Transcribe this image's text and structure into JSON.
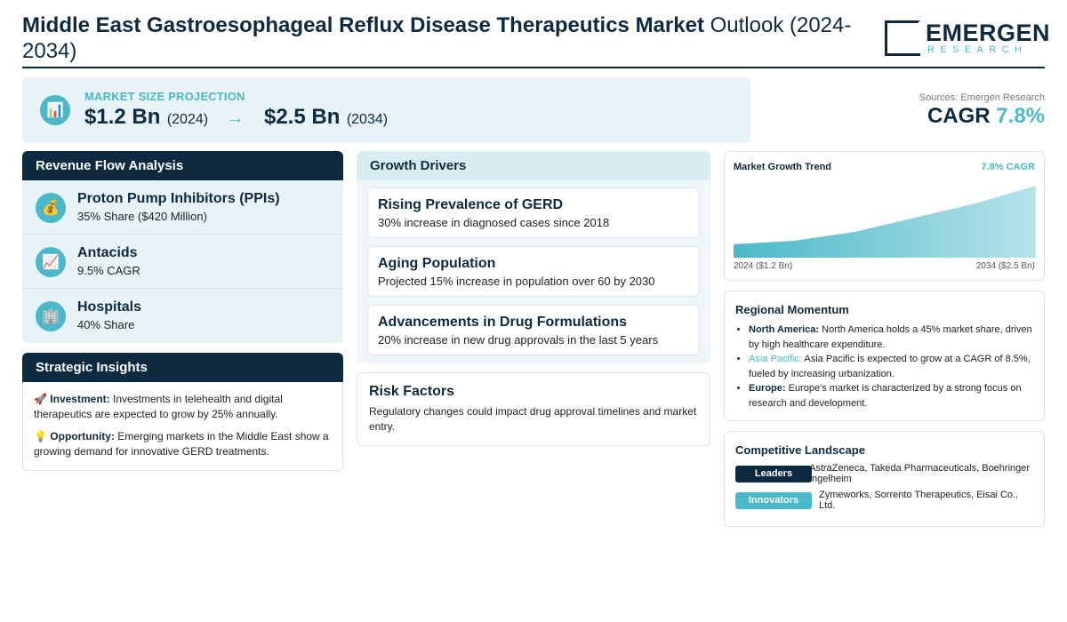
{
  "header": {
    "title_bold": "Middle East Gastroesophageal Reflux Disease Therapeutics Market",
    "title_rest": " Outlook (2024-2034)"
  },
  "logo": {
    "name": "EMERGEN",
    "sub": "RESEARCH"
  },
  "projection": {
    "label": "MARKET SIZE PROJECTION",
    "start_value": "$1.2 Bn",
    "start_year": "(2024)",
    "arrow": "→",
    "end_value": "$2.5 Bn",
    "end_year": "(2034)",
    "icon": "chart-icon"
  },
  "sources": "Sources: Emergen Research",
  "cagr": {
    "label": "CAGR",
    "value": "7.8%"
  },
  "revenue": {
    "title": "Revenue Flow Analysis",
    "items": [
      {
        "icon": "money-bag-icon",
        "glyph": "💰",
        "title": "Proton Pump Inhibitors (PPIs)",
        "sub": "35% Share ($420 Million)"
      },
      {
        "icon": "trend-up-icon",
        "glyph": "📈",
        "title": "Antacids",
        "sub": "9.5% CAGR"
      },
      {
        "icon": "hospital-icon",
        "glyph": "🏢",
        "title": "Hospitals",
        "sub": "40% Share"
      }
    ]
  },
  "strategic": {
    "title": "Strategic Insights",
    "investment_icon": "🚀",
    "investment_label": "Investment:",
    "investment_text": " Investments in telehealth and digital therapeutics are expected to grow by 25% annually.",
    "opportunity_icon": "💡",
    "opportunity_label": "Opportunity:",
    "opportunity_text": " Emerging markets in the Middle East show a growing demand for innovative GERD treatments."
  },
  "growth": {
    "title": "Growth Drivers",
    "items": [
      {
        "title": "Rising Prevalence of GERD",
        "sub": "30% increase in diagnosed cases since 2018"
      },
      {
        "title": "Aging Population",
        "sub": "Projected 15% increase in population over 60 by 2030"
      },
      {
        "title": "Advancements in Drug Formulations",
        "sub": "20% increase in new drug approvals in the last 5 years"
      }
    ]
  },
  "risk": {
    "title": "Risk Factors",
    "body": "Regulatory changes could impact drug approval timelines and market entry."
  },
  "trend": {
    "title": "Market Growth Trend",
    "cagr": "7.8% CAGR",
    "start_label": "2024 ($1.2 Bn)",
    "end_label": "2034 ($2.5 Bn)",
    "colors": {
      "fill_start": "#4ab8c8",
      "fill_end": "#b7e3ea"
    }
  },
  "regional": {
    "title": "Regional Momentum",
    "items": [
      {
        "name": "North America:",
        "text": " North America holds a 45% market share, driven by high healthcare expenditure."
      },
      {
        "name": "Asia Pacific:",
        "text": " Asia Pacific is expected to grow at a CAGR of 8.5%, fueled by increasing urbanization."
      },
      {
        "name": "Europe:",
        "text": " Europe's market is characterized by a strong focus on research and development."
      }
    ]
  },
  "competitive": {
    "title": "Competitive Landscape",
    "leaders_label": "Leaders",
    "leaders_text": "AstraZeneca, Takeda Pharmaceuticals, Boehringer Ingelheim",
    "innovators_label": "Innovators",
    "innovators_text": "Zymeworks, Sorrento Therapeutics, Eisai Co., Ltd."
  },
  "colors": {
    "navy": "#0e2a40",
    "teal": "#4ab8c8",
    "light_panel": "#e7f3f6"
  }
}
